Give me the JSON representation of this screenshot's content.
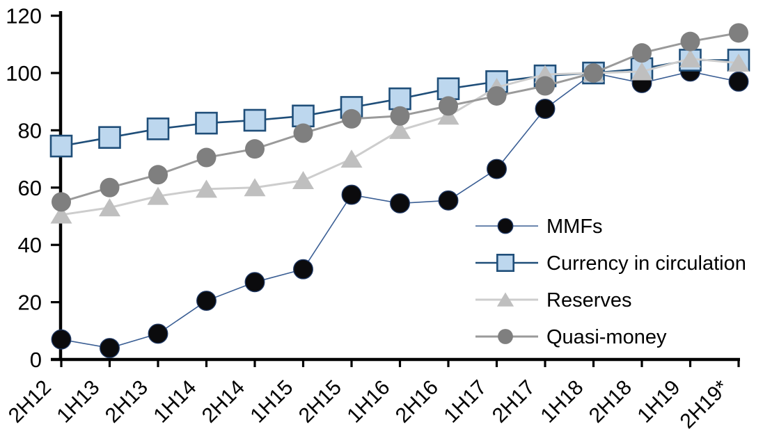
{
  "chart_data": {
    "type": "line",
    "title": "",
    "categories": [
      "2H12",
      "1H13",
      "2H13",
      "1H14",
      "2H14",
      "1H15",
      "2H15",
      "1H16",
      "2H16",
      "1H17",
      "2H17",
      "1H18",
      "2H18",
      "1H19",
      "2H19*"
    ],
    "series": [
      {
        "name": "MMFs",
        "marker": "circle",
        "marker_fill": "#0b0b0d",
        "marker_stroke": "#1f3864",
        "marker_radius": 13.8,
        "line_color": "#3a5e94",
        "line_width": 1.6,
        "values": [
          7,
          4,
          9,
          20.5,
          27,
          31.5,
          57.5,
          54.5,
          55.5,
          66.5,
          87.5,
          100,
          96.5,
          100.5,
          97
        ]
      },
      {
        "name": "Currency in circulation",
        "marker": "square",
        "marker_fill": "#bdd7ee",
        "marker_stroke": "#1f4e79",
        "marker_size": 30,
        "line_color": "#1f4e79",
        "line_width": 2.6,
        "values": [
          74.5,
          77.5,
          80.5,
          82.5,
          83.5,
          85,
          88,
          91,
          94.5,
          97,
          99,
          100,
          101.5,
          104.5,
          104.5
        ]
      },
      {
        "name": "Reserves",
        "marker": "triangle",
        "marker_fill": "#bfbfbf",
        "marker_stroke": "none",
        "marker_size": 31,
        "line_color": "#cdcdcd",
        "line_width": 3,
        "values": [
          50.5,
          53,
          57,
          59.5,
          60,
          62.5,
          70,
          80,
          85,
          95,
          99.5,
          100,
          100.5,
          105,
          103.5
        ]
      },
      {
        "name": "Quasi-money",
        "marker": "circle",
        "marker_fill": "#7f7f7f",
        "marker_stroke": "none",
        "marker_radius": 14,
        "line_color": "#9a9a9a",
        "line_width": 3,
        "values": [
          55,
          60,
          64.5,
          70.5,
          73.5,
          79,
          84,
          85,
          88.5,
          92,
          95.5,
          100,
          107,
          111,
          114
        ]
      }
    ],
    "x_axis": {
      "rotation": -45,
      "tick_labels": [
        "2H12",
        "1H13",
        "2H13",
        "1H14",
        "2H14",
        "1H15",
        "2H15",
        "1H16",
        "2H16",
        "1H17",
        "2H17",
        "1H18",
        "2H18",
        "1H19",
        "2H19*"
      ]
    },
    "y_axis": {
      "min": 0,
      "max": 120,
      "step": 20,
      "tick_labels": [
        "0",
        "20",
        "40",
        "60",
        "80",
        "100",
        "120"
      ]
    },
    "legend": {
      "position": "inside-right",
      "items": [
        "MMFs",
        "Currency in circulation",
        "Reserves",
        "Quasi-money"
      ]
    },
    "grid": false,
    "axis_color": "#000000",
    "background": "#ffffff"
  }
}
